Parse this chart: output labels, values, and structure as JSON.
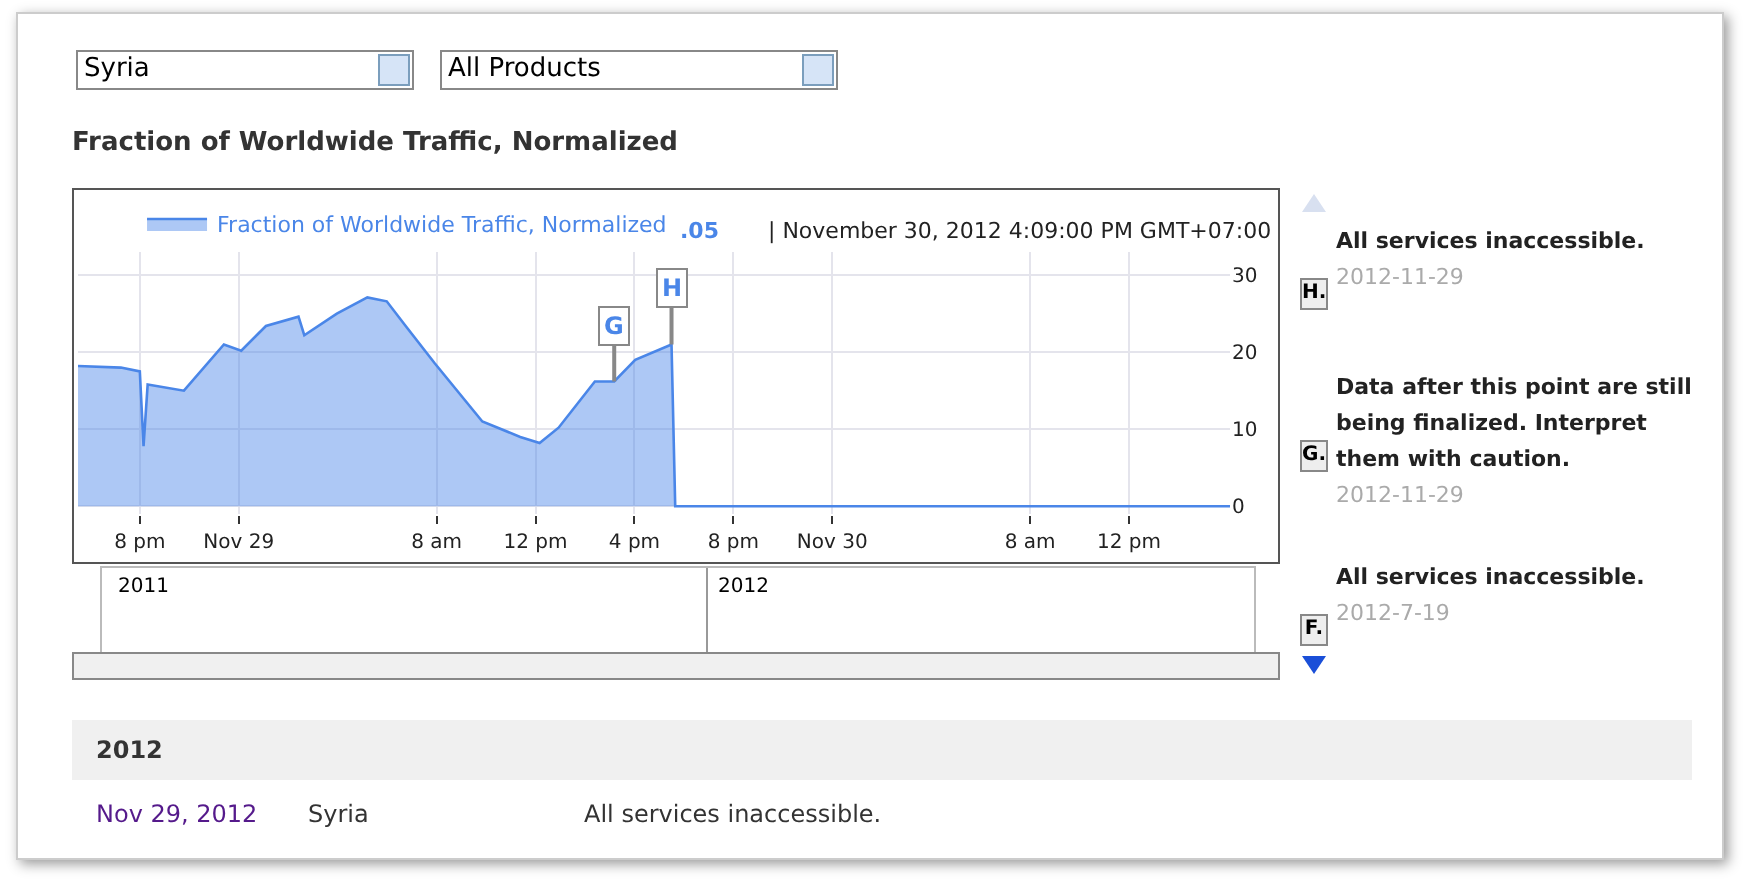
{
  "chart_data": {
    "type": "area",
    "title": "Fraction of Worldwide Traffic, Normalized",
    "x": [
      "2012-11-28T17:30",
      "2012-11-28T19:14",
      "2012-11-28T20:00",
      "2012-11-28T20:09",
      "2012-11-28T20:19",
      "2012-11-28T21:47",
      "2012-11-28T23:24",
      "2012-11-29T00:06",
      "2012-11-29T01:06",
      "2012-11-29T02:25",
      "2012-11-29T02:39",
      "2012-11-29T03:58",
      "2012-11-29T05:12",
      "2012-11-29T05:59",
      "2012-11-29T06:45",
      "2012-11-29T07:55",
      "2012-11-29T08:50",
      "2012-11-29T09:51",
      "2012-11-29T11:23",
      "2012-11-29T12:10",
      "2012-11-29T12:56",
      "2012-11-29T14:24",
      "2012-11-29T15:11",
      "2012-11-29T16:02",
      "2012-11-29T17:30",
      "2012-11-29T17:39",
      "2012-11-30T00:00",
      "2012-11-30T16:05"
    ],
    "series": [
      {
        "name": "Fraction of Worldwide Traffic, Normalized",
        "color": "#4a86e8",
        "values": [
          18.2,
          18,
          17.5,
          7.8,
          15.8,
          15,
          21,
          20.2,
          23.4,
          24.6,
          22.2,
          25,
          27.1,
          26.6,
          23.4,
          18.6,
          15,
          11,
          9,
          8.2,
          10.2,
          16.2,
          16.2,
          19,
          21,
          0,
          0,
          0
        ]
      }
    ],
    "xlim": [
      "2012-11-28T17:30",
      "2012-11-30T16:05"
    ],
    "xticks": [
      {
        "value": "2012-11-28T20:00",
        "label": "8 pm"
      },
      {
        "value": "2012-11-29T00:00",
        "label": "Nov 29"
      },
      {
        "value": "2012-11-29T08:00",
        "label": "8 am"
      },
      {
        "value": "2012-11-29T12:00",
        "label": "12 pm"
      },
      {
        "value": "2012-11-29T16:00",
        "label": "4 pm"
      },
      {
        "value": "2012-11-29T20:00",
        "label": "8 pm"
      },
      {
        "value": "2012-11-30T00:00",
        "label": "Nov 30"
      },
      {
        "value": "2012-11-30T08:00",
        "label": "8 am"
      },
      {
        "value": "2012-11-30T12:00",
        "label": "12 pm"
      }
    ],
    "ylim": [
      -1,
      33
    ],
    "yticks": [
      0,
      10,
      20,
      30
    ],
    "grid": true,
    "legend": "top",
    "annotations": [
      "Syria",
      "All Products",
      ".05",
      "| November 30, 2012 4:09:00 PM GMT+07:00",
      "2011",
      "2012",
      {
        "text": "G",
        "x": "2012-11-29T15:11",
        "y": 16.2
      },
      {
        "text": "H",
        "x": "2012-11-29T17:30",
        "y": 21
      },
      "H.",
      "All services inaccessible.",
      "2012-11-29",
      "G.",
      "Data after this point are still being finalized. Interpret them with caution.",
      "2012-11-29",
      "F.",
      "All services inaccessible.",
      "2012-7-19",
      "2012",
      "Nov 29, 2012",
      "Syria",
      "All services inaccessible."
    ]
  }
}
